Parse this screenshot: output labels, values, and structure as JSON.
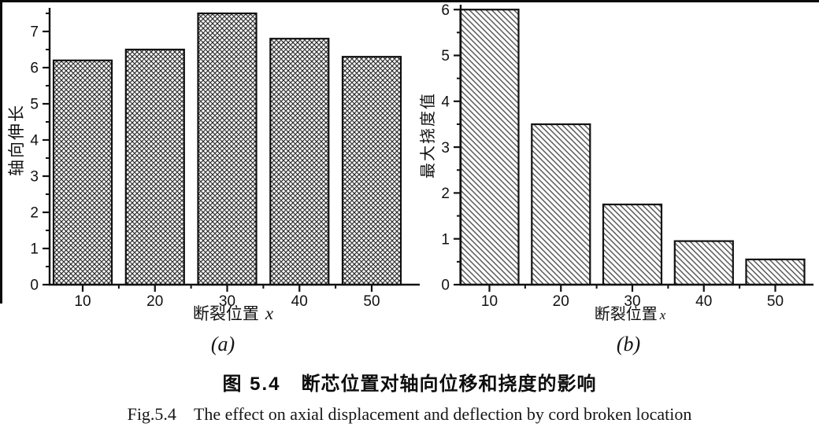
{
  "colors": {
    "ink": "#111111",
    "hatch_dark": "#2b2b2b",
    "hatch_gray": "#474747",
    "background": "#ffffff"
  },
  "chart_data": [
    {
      "id": "a",
      "type": "bar",
      "panel_label": "(a)",
      "categories": [
        "10",
        "20",
        "30",
        "40",
        "50"
      ],
      "values": [
        6.2,
        6.5,
        7.5,
        6.8,
        6.3
      ],
      "title": "",
      "xlabel": "断裂位置",
      "xlabel_var": "x",
      "ylabel": "轴向伸长",
      "ylim": [
        0,
        7.65
      ],
      "yticks": [
        0,
        1,
        2,
        3,
        4,
        5,
        6,
        7
      ],
      "minor_tick_step": 0.5,
      "grid": false,
      "legend": "none",
      "hatch": "crosshatch"
    },
    {
      "id": "b",
      "type": "bar",
      "panel_label": "(b)",
      "categories": [
        "10",
        "20",
        "30",
        "40",
        "50"
      ],
      "values": [
        6.0,
        3.5,
        1.75,
        0.95,
        0.55
      ],
      "title": "",
      "xlabel": "断裂位置",
      "xlabel_var": "x",
      "ylabel": "最大挠度值",
      "ylim": [
        0,
        6.1
      ],
      "yticks": [
        0,
        1,
        2,
        3,
        4,
        5,
        6
      ],
      "minor_tick_step": 0.5,
      "grid": false,
      "legend": "none",
      "hatch": "diagonal"
    }
  ],
  "caption": {
    "zh_label": "图 5.4",
    "zh_text": "断芯位置对轴向位移和挠度的影响",
    "en_label": "Fig.5.4",
    "en_text": "The effect on axial displacement and deflection by cord broken location"
  }
}
